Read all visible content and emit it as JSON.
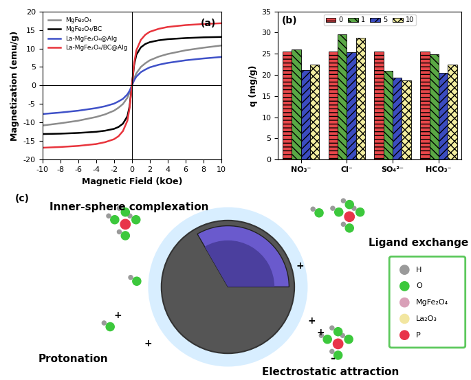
{
  "chart_data": [
    {
      "type": "line",
      "annotation": "(a)",
      "x_label": "Magnetic Field (kOe)",
      "y_label": "Magnetization (emu/g)",
      "x": [
        -10,
        -8,
        -6,
        -4,
        -3,
        -2,
        -1.5,
        -1,
        -0.5,
        -0.25,
        0,
        0.25,
        0.5,
        1,
        1.5,
        2,
        3,
        4,
        6,
        8,
        10
      ],
      "series": [
        {
          "name": "MgFe₂O₄",
          "color": "#8c8c8c",
          "values": [
            -10.8,
            -10.2,
            -9.5,
            -8.5,
            -7.8,
            -6.8,
            -6.0,
            -5.0,
            -3.3,
            -1.9,
            0,
            1.9,
            3.3,
            5.0,
            6.0,
            6.8,
            7.8,
            8.5,
            9.5,
            10.2,
            10.8
          ]
        },
        {
          "name": "MgFe₂O₄/BC",
          "color": "#000000",
          "values": [
            -13.1,
            -13.0,
            -12.8,
            -12.5,
            -12.2,
            -11.7,
            -11.2,
            -10.3,
            -8.3,
            -5.5,
            0,
            5.5,
            8.3,
            10.3,
            11.2,
            11.7,
            12.2,
            12.5,
            12.8,
            13.0,
            13.1
          ]
        },
        {
          "name": "La-MgFe₂O₄@Alg",
          "color": "#3f51c8",
          "values": [
            -7.7,
            -7.3,
            -6.8,
            -6.1,
            -5.6,
            -4.9,
            -4.3,
            -3.6,
            -2.4,
            -1.4,
            0,
            1.4,
            2.4,
            3.6,
            4.3,
            4.9,
            5.6,
            6.1,
            6.8,
            7.3,
            7.7
          ]
        },
        {
          "name": "La-MgFe₂O₄/BC@Alg",
          "color": "#e8343c",
          "values": [
            -16.8,
            -16.6,
            -16.3,
            -15.8,
            -15.3,
            -14.5,
            -13.7,
            -12.3,
            -9.5,
            -6.0,
            0,
            6.0,
            9.5,
            12.3,
            13.7,
            14.5,
            15.3,
            15.8,
            16.3,
            16.6,
            16.8
          ]
        }
      ],
      "xlim": [
        -10,
        10
      ],
      "xticks": [
        -10,
        -8,
        -6,
        -4,
        -2,
        0,
        2,
        4,
        6,
        8,
        10
      ],
      "ylim": [
        -20,
        20
      ],
      "yticks": [
        -20,
        -15,
        -10,
        -5,
        0,
        5,
        10,
        15,
        20
      ],
      "legend": "upper left"
    },
    {
      "type": "bar",
      "annotation": "(b)",
      "y_label": "q (mg/g)",
      "categories": [
        "NO₃⁻",
        "Cl⁻",
        "SO₄²⁻",
        "HCO₃⁻"
      ],
      "series": [
        {
          "name": "0",
          "color": "#e8474a",
          "values": [
            25.5,
            25.5,
            25.5,
            25.5
          ]
        },
        {
          "name": "1",
          "color": "#5aa845",
          "values": [
            26.0,
            29.5,
            20.9,
            24.8
          ]
        },
        {
          "name": "5",
          "color": "#3b4cc0",
          "values": [
            21.2,
            25.4,
            19.3,
            20.5
          ]
        },
        {
          "name": "10",
          "color": "#f3eea0",
          "values": [
            22.5,
            28.7,
            18.7,
            22.5
          ]
        }
      ],
      "ylim": [
        0,
        35
      ],
      "yticks": [
        0,
        5,
        10,
        15,
        20,
        25,
        30,
        35
      ],
      "legend": "upper center"
    }
  ],
  "diagram": {
    "label": "(c)",
    "mechanisms": {
      "top_left": "Inner-sphere complexation",
      "top_right": "Ligand exchange",
      "bottom_left": "Protonation",
      "bottom_right": "Electrostatic attraction"
    },
    "signs": {
      "positive": "+",
      "negative": "-"
    },
    "key": [
      {
        "label": "H",
        "color": "#9a9a9a"
      },
      {
        "label": "O",
        "color": "#3cc83c"
      },
      {
        "label": "MgFe₂O₄",
        "color": "#d9a0b8"
      },
      {
        "label": "La₂O₃",
        "color": "#f2e6a0"
      },
      {
        "label": "P",
        "color": "#e8344a"
      }
    ]
  }
}
